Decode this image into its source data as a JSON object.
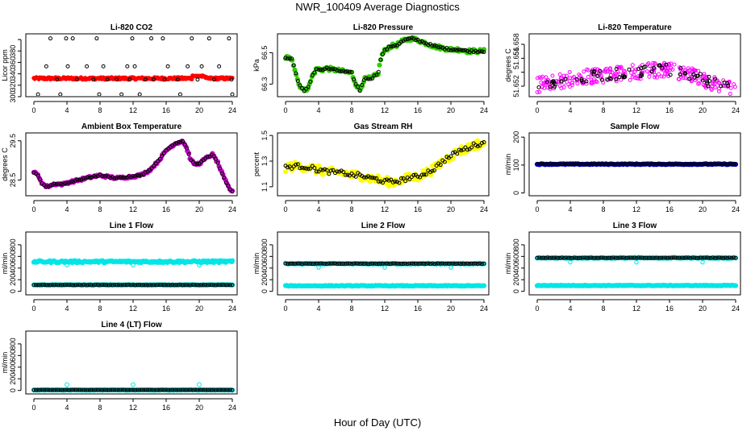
{
  "figure": {
    "title": "NWR_100409  Average Diagnostics",
    "xlabel": "Hour of Day (UTC)"
  },
  "chart_data": [
    {
      "type": "scatter",
      "title": "Li-820 CO2",
      "ylabel": "Licor ppm",
      "xlim": [
        0,
        24
      ],
      "ylim": [
        300,
        410
      ],
      "xticks": [
        0,
        4,
        8,
        12,
        16,
        20,
        24
      ],
      "yticks": [
        300,
        320,
        340,
        360,
        380,
        400
      ],
      "ytick_labels": [
        "300",
        "320",
        "340",
        "360",
        "380",
        ""
      ],
      "series": [
        {
          "name": "fill",
          "style": "fill",
          "color": "#ff0000",
          "y0": 330,
          "y1": 334,
          "bump_at": 20,
          "bump_to": 337
        },
        {
          "name": "points",
          "style": "points",
          "color": "#000000",
          "points": [
            [
              0.5,
              304
            ],
            [
              1.5,
              353
            ],
            [
              2.0,
              402
            ],
            [
              2.8,
              330
            ],
            [
              3.2,
              304
            ],
            [
              3.9,
              402
            ],
            [
              4.1,
              353
            ],
            [
              4.7,
              402
            ],
            [
              5.2,
              330
            ],
            [
              6.4,
              353
            ],
            [
              7.6,
              402
            ],
            [
              7.9,
              304
            ],
            [
              8.4,
              353
            ],
            [
              8.9,
              330
            ],
            [
              10.6,
              304
            ],
            [
              11.3,
              353
            ],
            [
              11.6,
              330
            ],
            [
              11.9,
              402
            ],
            [
              12.2,
              353
            ],
            [
              12.8,
              304
            ],
            [
              14.2,
              402
            ],
            [
              14.5,
              330
            ],
            [
              15.6,
              402
            ],
            [
              15.8,
              330
            ],
            [
              16.2,
              353
            ],
            [
              17.7,
              304
            ],
            [
              18.6,
              353
            ],
            [
              19.1,
              402
            ],
            [
              19.8,
              330
            ],
            [
              20.3,
              353
            ],
            [
              21.2,
              402
            ],
            [
              22.4,
              353
            ],
            [
              23.6,
              402
            ],
            [
              23.9,
              330
            ],
            [
              24.0,
              304
            ],
            [
              21.8,
              330
            ],
            [
              7.2,
              330
            ],
            [
              13.5,
              330
            ],
            [
              10.0,
              330
            ],
            [
              17.4,
              330
            ]
          ]
        }
      ]
    },
    {
      "type": "scatter",
      "title": "Li-820 Pressure",
      "ylabel": "kPa",
      "xlim": [
        0,
        24
      ],
      "ylim": [
        66.22,
        66.62
      ],
      "xticks": [
        0,
        4,
        8,
        12,
        16,
        20,
        24
      ],
      "yticks": [
        66.3,
        66.5
      ],
      "ytick_labels": [
        "66.3",
        "66.5"
      ],
      "series": [
        {
          "name": "trace",
          "style": "trace",
          "color": "#33cc00",
          "edge": "#000000",
          "jitter": 0.012,
          "points": [
            [
              0,
              66.47
            ],
            [
              0.8,
              66.46
            ],
            [
              1.2,
              66.38
            ],
            [
              1.6,
              66.3
            ],
            [
              2.2,
              66.26
            ],
            [
              2.8,
              66.28
            ],
            [
              3.3,
              66.36
            ],
            [
              3.8,
              66.4
            ],
            [
              4.3,
              66.39
            ],
            [
              5.0,
              66.4
            ],
            [
              6.0,
              66.39
            ],
            [
              7.0,
              66.38
            ],
            [
              8.0,
              66.37
            ],
            [
              8.5,
              66.3
            ],
            [
              9.0,
              66.26
            ],
            [
              9.5,
              66.33
            ],
            [
              10.5,
              66.34
            ],
            [
              11.2,
              66.37
            ],
            [
              11.6,
              66.48
            ],
            [
              12.1,
              66.52
            ],
            [
              12.7,
              66.54
            ],
            [
              13.5,
              66.55
            ],
            [
              14.4,
              66.58
            ],
            [
              15.2,
              66.59
            ],
            [
              16.0,
              66.58
            ],
            [
              17.0,
              66.56
            ],
            [
              18.0,
              66.54
            ],
            [
              19.0,
              66.53
            ],
            [
              20.0,
              66.52
            ],
            [
              21.0,
              66.52
            ],
            [
              22.0,
              66.51
            ],
            [
              23.0,
              66.51
            ],
            [
              24.0,
              66.51
            ]
          ]
        }
      ]
    },
    {
      "type": "scatter",
      "title": "Li-820 Temperature",
      "ylabel": "degrees C",
      "xlim": [
        0,
        24
      ],
      "ylim": [
        51.6505,
        51.6595
      ],
      "xticks": [
        0,
        4,
        8,
        12,
        16,
        20,
        24
      ],
      "yticks": [
        51.652,
        51.654,
        51.656,
        51.658
      ],
      "ytick_labels": [
        "51.652",
        "",
        "51.656",
        "51.658"
      ],
      "series": [
        {
          "name": "cloud",
          "style": "cloud",
          "color": "#ff00ff",
          "edge": "#000000",
          "spread": 0.0011,
          "count": 260,
          "points": [
            [
              0,
              51.6522
            ],
            [
              3,
              51.6528
            ],
            [
              6,
              51.6533
            ],
            [
              9,
              51.6537
            ],
            [
              12,
              51.654
            ],
            [
              14,
              51.6543
            ],
            [
              16,
              51.6544
            ],
            [
              18,
              51.6538
            ],
            [
              20,
              51.653
            ],
            [
              22,
              51.6522
            ],
            [
              24,
              51.6513
            ]
          ]
        }
      ]
    },
    {
      "type": "scatter",
      "title": "Ambient Box Temperature",
      "ylabel": "degrees C",
      "xlim": [
        0,
        24
      ],
      "ylim": [
        28.1,
        29.7
      ],
      "xticks": [
        0,
        4,
        8,
        12,
        16,
        20,
        24
      ],
      "yticks": [
        28.5,
        29.5
      ],
      "ytick_labels": [
        "28.5",
        "29.5"
      ],
      "series": [
        {
          "name": "trace",
          "style": "trace",
          "color": "#cc00cc",
          "edge": "#000000",
          "jitter": 0.03,
          "points": [
            [
              0,
              28.7
            ],
            [
              0.5,
              28.62
            ],
            [
              1.0,
              28.42
            ],
            [
              1.5,
              28.33
            ],
            [
              2.0,
              28.36
            ],
            [
              2.5,
              28.4
            ],
            [
              3.0,
              28.4
            ],
            [
              3.5,
              28.39
            ],
            [
              4.0,
              28.43
            ],
            [
              5.0,
              28.48
            ],
            [
              6.0,
              28.53
            ],
            [
              7.0,
              28.58
            ],
            [
              8.0,
              28.62
            ],
            [
              9.0,
              28.58
            ],
            [
              10.0,
              28.55
            ],
            [
              11.0,
              28.57
            ],
            [
              12.0,
              28.59
            ],
            [
              13.0,
              28.63
            ],
            [
              14.0,
              28.75
            ],
            [
              15.0,
              28.97
            ],
            [
              16.0,
              29.25
            ],
            [
              17.0,
              29.42
            ],
            [
              18.0,
              29.5
            ],
            [
              18.5,
              29.3
            ],
            [
              19.0,
              29.0
            ],
            [
              19.5,
              28.9
            ],
            [
              20.0,
              28.92
            ],
            [
              21.0,
              29.08
            ],
            [
              21.6,
              29.15
            ],
            [
              22.2,
              28.96
            ],
            [
              23.0,
              28.55
            ],
            [
              23.6,
              28.3
            ],
            [
              24.0,
              28.2
            ]
          ]
        }
      ]
    },
    {
      "type": "scatter",
      "title": "Gas Stream RH",
      "ylabel": "percent",
      "xlim": [
        0,
        24
      ],
      "ylim": [
        1.03,
        1.52
      ],
      "xticks": [
        0,
        4,
        8,
        12,
        16,
        20,
        24
      ],
      "yticks": [
        1.1,
        1.3,
        1.5
      ],
      "ytick_labels": [
        "1.1",
        "1.3",
        "1.5"
      ],
      "series": [
        {
          "name": "trace",
          "style": "trace",
          "color": "#ffff00",
          "edge": "#000000",
          "jitter": 0.035,
          "points": [
            [
              0,
              1.25
            ],
            [
              1,
              1.26
            ],
            [
              2,
              1.26
            ],
            [
              3,
              1.25
            ],
            [
              4,
              1.23
            ],
            [
              5,
              1.22
            ],
            [
              6,
              1.21
            ],
            [
              7,
              1.21
            ],
            [
              8,
              1.19
            ],
            [
              9,
              1.19
            ],
            [
              10,
              1.17
            ],
            [
              11,
              1.16
            ],
            [
              12,
              1.14
            ],
            [
              13,
              1.14
            ],
            [
              14,
              1.15
            ],
            [
              15,
              1.17
            ],
            [
              16,
              1.18
            ],
            [
              17,
              1.21
            ],
            [
              18,
              1.24
            ],
            [
              19,
              1.3
            ],
            [
              20,
              1.34
            ],
            [
              21,
              1.38
            ],
            [
              22,
              1.4
            ],
            [
              23,
              1.43
            ],
            [
              24,
              1.44
            ]
          ]
        }
      ]
    },
    {
      "type": "scatter",
      "title": "Sample Flow",
      "ylabel": "ml/min",
      "xlim": [
        0,
        24
      ],
      "ylim": [
        -10,
        215
      ],
      "xticks": [
        0,
        4,
        8,
        12,
        16,
        20,
        24
      ],
      "yticks": [
        0,
        100,
        200
      ],
      "ytick_labels": [
        "0",
        "100",
        "200"
      ],
      "series": [
        {
          "name": "trace",
          "style": "trace",
          "color": "#0000cc",
          "edge": "#000000",
          "jitter": 1.5,
          "points": [
            [
              0,
              103
            ],
            [
              24,
              103
            ]
          ]
        }
      ]
    },
    {
      "type": "scatter",
      "title": "Line 1 Flow",
      "ylabel": "ml/min",
      "xlim": [
        0,
        24
      ],
      "ylim": [
        -60,
        1020
      ],
      "xticks": [
        0,
        4,
        8,
        12,
        16,
        20,
        24
      ],
      "yticks": [
        0,
        200,
        400,
        600,
        800
      ],
      "ytick_labels": [
        "0",
        "200",
        "400",
        "600",
        "800"
      ],
      "series": [
        {
          "name": "high",
          "style": "trace",
          "color": "#00e5e5",
          "edge": "#00e5e5",
          "jitter": 18,
          "dips": [
            4,
            12,
            20
          ],
          "dip_to": 450,
          "points": [
            [
              0,
              510
            ],
            [
              24,
              510
            ]
          ]
        },
        {
          "name": "low",
          "style": "trace",
          "color": "#00e5e5",
          "edge": "#000000",
          "jitter": 6,
          "points": [
            [
              0,
              110
            ],
            [
              24,
              110
            ]
          ]
        }
      ]
    },
    {
      "type": "scatter",
      "title": "Line 2 Flow",
      "ylabel": "ml/min",
      "xlim": [
        0,
        24
      ],
      "ylim": [
        -60,
        1020
      ],
      "xticks": [
        0,
        4,
        8,
        12,
        16,
        20,
        24
      ],
      "yticks": [
        0,
        200,
        400,
        600,
        800
      ],
      "ytick_labels": [
        "0",
        "200",
        "400",
        "600",
        "800"
      ],
      "series": [
        {
          "name": "high",
          "style": "trace",
          "color": "#00e5e5",
          "edge": "#000000",
          "jitter": 8,
          "dips": [
            4,
            12,
            20
          ],
          "dip_to": 410,
          "points": [
            [
              0,
              475
            ],
            [
              24,
              475
            ]
          ]
        },
        {
          "name": "low",
          "style": "trace",
          "color": "#00e5e5",
          "edge": "#00e5e5",
          "jitter": 6,
          "points": [
            [
              0,
              95
            ],
            [
              24,
              95
            ]
          ]
        }
      ]
    },
    {
      "type": "scatter",
      "title": "Line 3 Flow",
      "ylabel": "ml/min",
      "xlim": [
        0,
        24
      ],
      "ylim": [
        -60,
        1020
      ],
      "xticks": [
        0,
        4,
        8,
        12,
        16,
        20,
        24
      ],
      "yticks": [
        0,
        200,
        400,
        600,
        800
      ],
      "ytick_labels": [
        "0",
        "200",
        "400",
        "600",
        "800"
      ],
      "series": [
        {
          "name": "high",
          "style": "trace",
          "color": "#00e5e5",
          "edge": "#000000",
          "jitter": 8,
          "dips": [
            4,
            12,
            20
          ],
          "dip_to": 500,
          "points": [
            [
              0,
              575
            ],
            [
              24,
              575
            ]
          ]
        },
        {
          "name": "low",
          "style": "trace",
          "color": "#00e5e5",
          "edge": "#00e5e5",
          "jitter": 5,
          "points": [
            [
              0,
              100
            ],
            [
              24,
              100
            ]
          ]
        }
      ]
    },
    {
      "type": "scatter",
      "title": "Line 4 (LT) Flow",
      "ylabel": "ml/min",
      "xlim": [
        0,
        24
      ],
      "ylim": [
        -60,
        1020
      ],
      "xticks": [
        0,
        4,
        8,
        12,
        16,
        20,
        24
      ],
      "yticks": [
        0,
        200,
        400,
        600,
        800
      ],
      "ytick_labels": [
        "0",
        "200",
        "400",
        "600",
        "800"
      ],
      "series": [
        {
          "name": "base",
          "style": "trace",
          "color": "#00e5e5",
          "edge": "#000000",
          "jitter": 4,
          "spikes": [
            4,
            12,
            20
          ],
          "spike_to": 100,
          "points": [
            [
              0,
              8
            ],
            [
              24,
              8
            ]
          ]
        }
      ]
    }
  ]
}
